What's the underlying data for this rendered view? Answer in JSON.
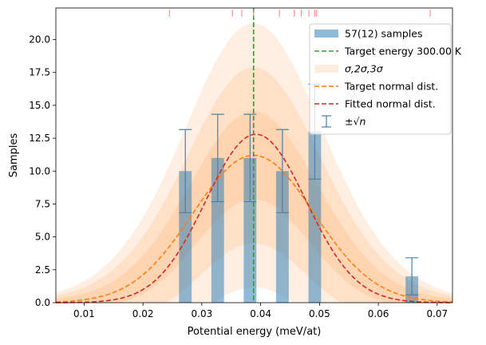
{
  "chart_data": {
    "type": "bar",
    "xlabel": "Potential energy (meV/at)",
    "ylabel": "Samples",
    "xlim": [
      0.0052,
      0.0726
    ],
    "ylim": [
      0,
      22.4
    ],
    "x_ticks": [
      0.01,
      0.02,
      0.03,
      0.04,
      0.05,
      0.06,
      0.07
    ],
    "x_tick_labels": [
      "0.01",
      "0.02",
      "0.03",
      "0.04",
      "0.05",
      "0.06",
      "0.07"
    ],
    "y_ticks": [
      0,
      2.5,
      5,
      7.5,
      10,
      12.5,
      15,
      17.5,
      20
    ],
    "y_tick_labels": [
      "0.0",
      "2.5",
      "5.0",
      "7.5",
      "10.0",
      "12.5",
      "15.0",
      "17.5",
      "20.0"
    ],
    "bars": {
      "name": "57(12) samples",
      "color": "#1f77b4",
      "x": [
        0.0272,
        0.0327,
        0.0382,
        0.0437,
        0.0492,
        0.0657
      ],
      "values": [
        10,
        11,
        11,
        10,
        13,
        2
      ],
      "width": 0.00215
    },
    "error_bars": {
      "name": "±√n",
      "color": "#4c7fa6",
      "x": [
        0.0272,
        0.0327,
        0.0382,
        0.0437,
        0.0492,
        0.0657
      ],
      "values": [
        10,
        11,
        11,
        10,
        13,
        2
      ],
      "errors": [
        3.16,
        3.32,
        3.32,
        3.16,
        3.61,
        1.41
      ]
    },
    "target_energy": {
      "name": "Target energy 300.00 K",
      "x": 0.0388,
      "color": "#2ca02c"
    },
    "sigma_bands": {
      "name": "σ,2σ,3σ",
      "color": "#ff7f0e",
      "mu": 0.0388,
      "sigma": 0.0103,
      "amplitude": 11.2,
      "levels": [
        1,
        2,
        3
      ]
    },
    "target_normal": {
      "name": "Target normal dist.",
      "color": "#ff7f0e",
      "mu": 0.0388,
      "sigma": 0.0103,
      "amplitude": 11.2
    },
    "fitted_normal": {
      "name": "Fitted normal dist.",
      "color": "#d62728",
      "mu": 0.0392,
      "sigma": 0.0085,
      "amplitude": 12.8
    },
    "sample_ticks": {
      "color": "#ff7f7f",
      "x": [
        0.0245,
        0.0352,
        0.0368,
        0.0388,
        0.0432,
        0.0457,
        0.0469,
        0.0482,
        0.0492,
        0.0495,
        0.0688
      ]
    },
    "legend": {
      "placement": "upper right",
      "entries": [
        {
          "label": "57(12) samples",
          "kind": "patch",
          "color": "#1f77b4"
        },
        {
          "label": "Target energy 300.00 K",
          "kind": "dashed",
          "color": "#2ca02c"
        },
        {
          "label": "σ,2σ,3σ",
          "kind": "band",
          "color": "#ff7f0e"
        },
        {
          "label": "Target normal dist.",
          "kind": "dashed",
          "color": "#ff7f0e"
        },
        {
          "label": "Fitted normal dist.",
          "kind": "dashed",
          "color": "#d62728"
        },
        {
          "label": "±√n",
          "kind": "errorbar",
          "color": "#4c7fa6"
        }
      ]
    }
  }
}
